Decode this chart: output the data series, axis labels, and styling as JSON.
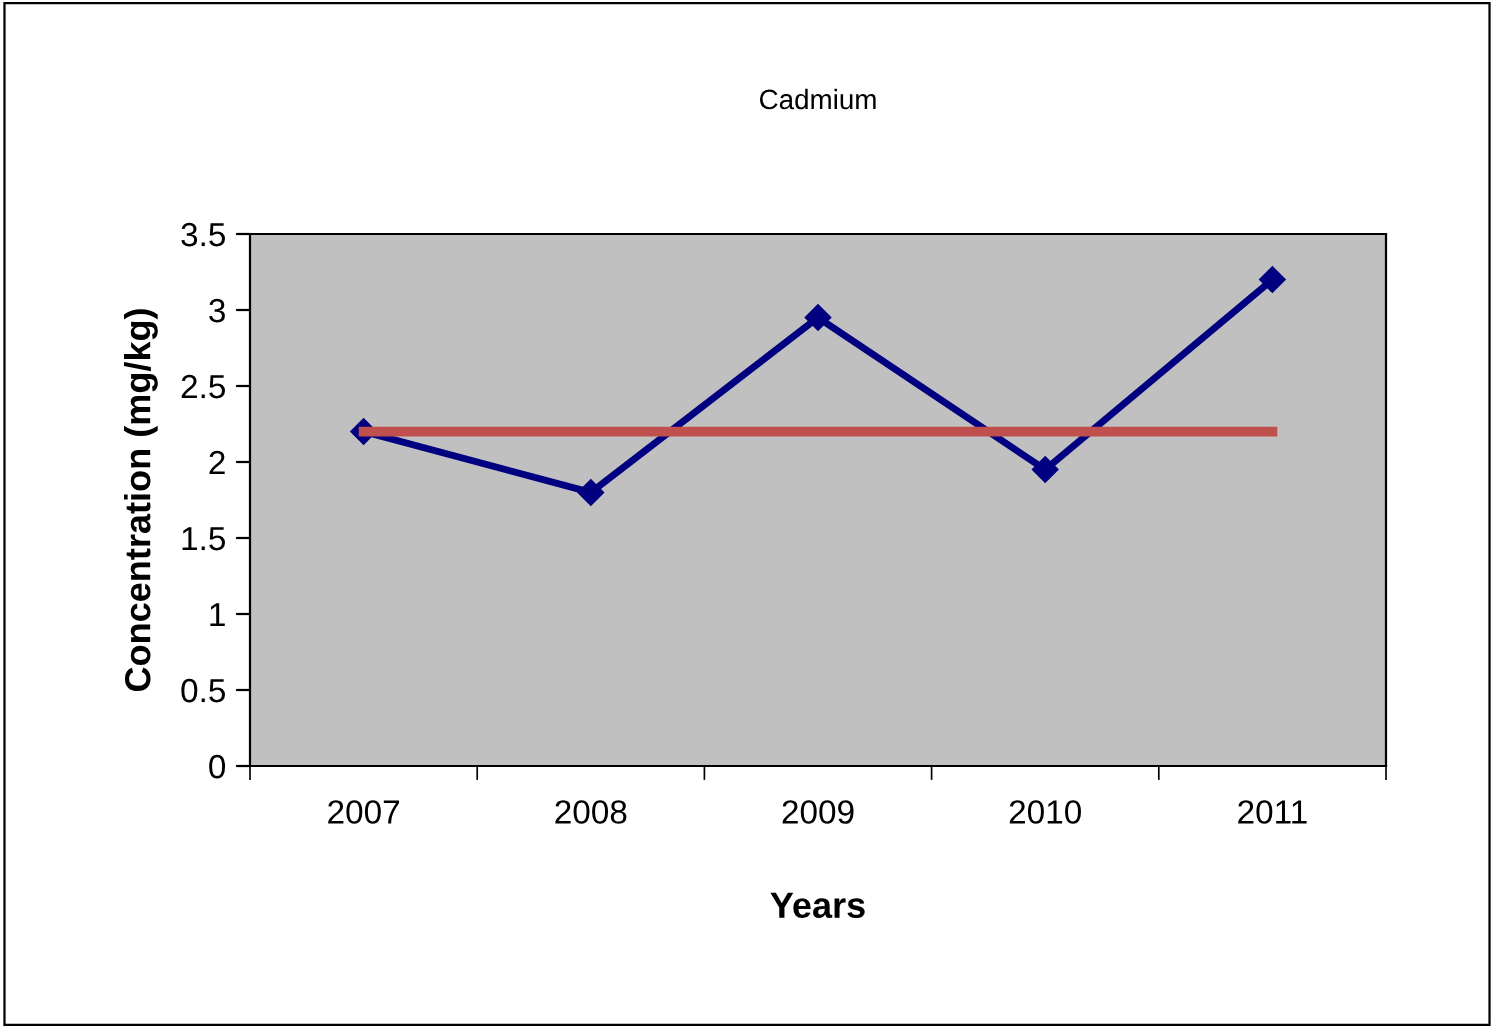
{
  "chart_data": {
    "type": "line",
    "title": "Cadmium",
    "xlabel": "Years",
    "ylabel": "Concentration (mg/kg)",
    "categories": [
      "2007",
      "2008",
      "2009",
      "2010",
      "2011"
    ],
    "series": [
      {
        "color": "#000080",
        "values": [
          2.2,
          1.8,
          2.95,
          1.95,
          3.2
        ],
        "marker": "diamond"
      },
      {
        "color": "#c0504d",
        "values": [
          2.2,
          2.2,
          2.2,
          2.2,
          2.2
        ],
        "marker": "none"
      }
    ],
    "ylim": [
      0,
      3.5
    ],
    "yticks": [
      0,
      0.5,
      1,
      1.5,
      2,
      2.5,
      3,
      3.5
    ],
    "grid": false,
    "legend": false,
    "line_style": "solid"
  }
}
